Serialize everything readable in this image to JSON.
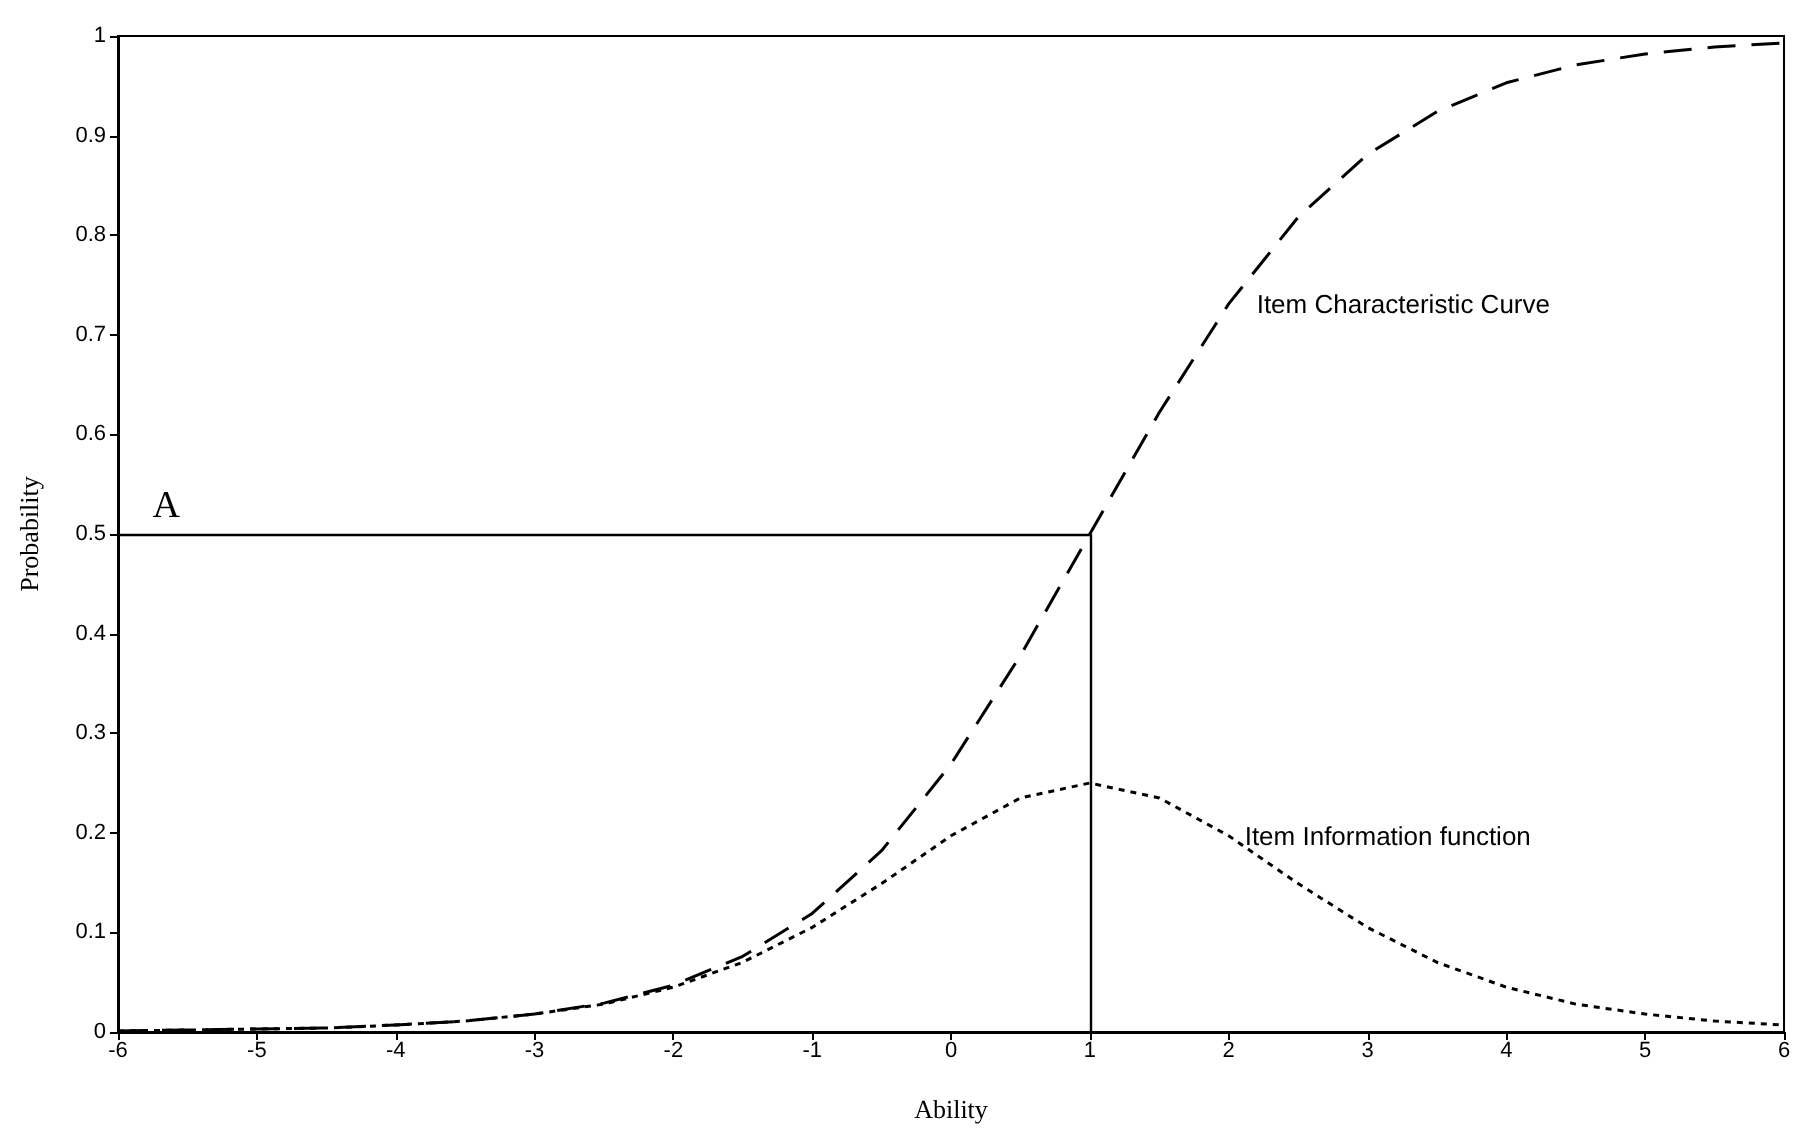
{
  "chart_data": {
    "type": "line",
    "xlabel": "Ability",
    "ylabel": "Probability",
    "x": [
      -6,
      -5.5,
      -5,
      -4.5,
      -4,
      -3.5,
      -3,
      -2.5,
      -2,
      -1.5,
      -1,
      -0.5,
      0,
      0.5,
      1,
      1.5,
      2,
      2.5,
      3,
      3.5,
      4,
      4.5,
      5,
      5.5,
      6
    ],
    "series": [
      {
        "name": "Item Characteristic Curve",
        "color": "#000000",
        "line_style": "dashed",
        "values": [
          0.001,
          0.002,
          0.003,
          0.004,
          0.007,
          0.011,
          0.018,
          0.029,
          0.047,
          0.076,
          0.119,
          0.182,
          0.269,
          0.378,
          0.5,
          0.622,
          0.731,
          0.818,
          0.881,
          0.924,
          0.953,
          0.971,
          0.982,
          0.989,
          0.993
        ]
      },
      {
        "name": "Item Information function",
        "color": "#000000",
        "line_style": "dotted",
        "values": [
          0.001,
          0.002,
          0.003,
          0.004,
          0.007,
          0.011,
          0.018,
          0.028,
          0.045,
          0.07,
          0.105,
          0.149,
          0.197,
          0.235,
          0.25,
          0.235,
          0.197,
          0.149,
          0.105,
          0.07,
          0.045,
          0.028,
          0.018,
          0.011,
          0.007
        ]
      }
    ],
    "ref_lines": [
      {
        "axis": "y",
        "value": 0.5,
        "label": "A",
        "color": "#000000",
        "line_style": "solid"
      },
      {
        "axis": "x",
        "value": 1,
        "color": "#000000",
        "line_style": "solid"
      }
    ],
    "xlim": [
      -6,
      6
    ],
    "xticks": [
      -6,
      -5,
      -4,
      -3,
      -2,
      -1,
      0,
      1,
      2,
      3,
      4,
      5,
      6
    ],
    "ylim": [
      0,
      1
    ],
    "yticks": [
      0,
      0.1,
      0.2,
      0.3,
      0.4,
      0.5,
      0.6,
      0.7,
      0.8,
      0.9,
      1
    ],
    "grid": false,
    "legend": false,
    "marker": "none"
  }
}
